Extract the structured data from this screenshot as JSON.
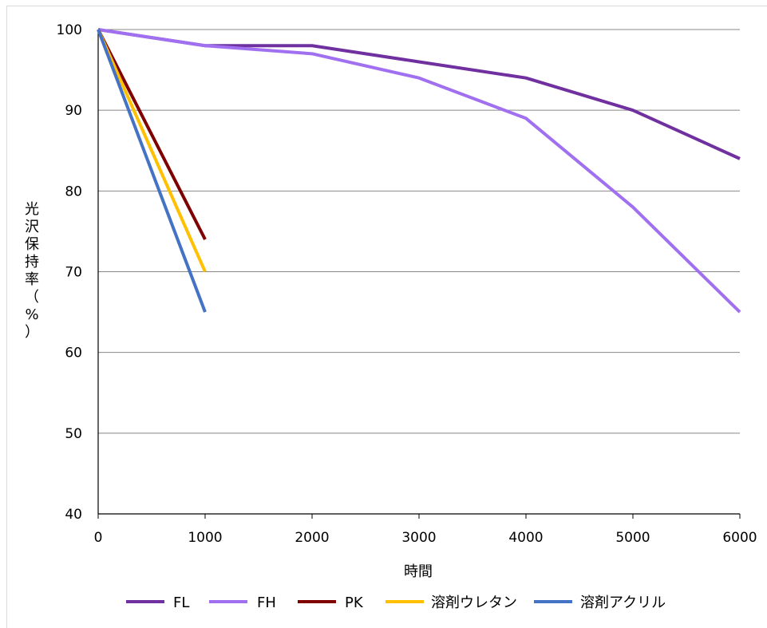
{
  "chart_data": {
    "type": "line",
    "title": "",
    "xlabel": "時間",
    "ylabel": "光沢保持率（%）",
    "xlim": [
      0,
      6000
    ],
    "ylim": [
      40,
      100
    ],
    "x_ticks": [
      0,
      1000,
      2000,
      3000,
      4000,
      5000,
      6000
    ],
    "y_ticks": [
      40,
      50,
      60,
      70,
      80,
      90,
      100
    ],
    "grid": "horizontal",
    "legend_position": "bottom",
    "series": [
      {
        "name": "FL",
        "color": "#7030a0",
        "points": [
          [
            0,
            100
          ],
          [
            1000,
            98
          ],
          [
            2000,
            98
          ],
          [
            3000,
            96
          ],
          [
            4000,
            94
          ],
          [
            5000,
            90
          ],
          [
            6000,
            84
          ]
        ]
      },
      {
        "name": "FH",
        "color": "#a070f0",
        "points": [
          [
            0,
            100
          ],
          [
            1000,
            98
          ],
          [
            2000,
            97
          ],
          [
            3000,
            94
          ],
          [
            4000,
            89
          ],
          [
            5000,
            78
          ],
          [
            6000,
            65
          ]
        ]
      },
      {
        "name": "PK",
        "color": "#7f0000",
        "points": [
          [
            0,
            100
          ],
          [
            1000,
            74
          ]
        ]
      },
      {
        "name": "溶剤ウレタン",
        "color": "#ffc000",
        "points": [
          [
            0,
            100
          ],
          [
            1000,
            70
          ]
        ]
      },
      {
        "name": "溶剤アクリル",
        "color": "#4472c4",
        "points": [
          [
            0,
            100
          ],
          [
            1000,
            65
          ]
        ]
      }
    ]
  }
}
